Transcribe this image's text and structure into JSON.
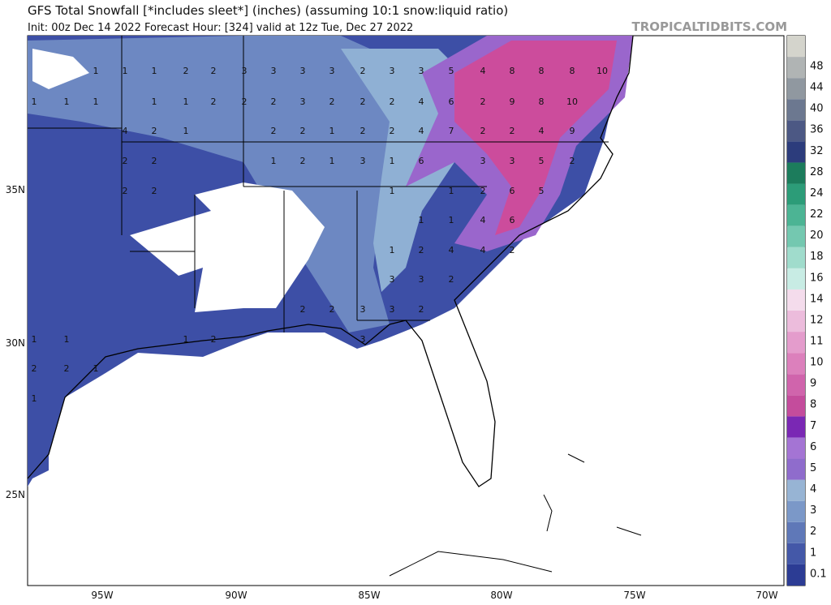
{
  "header": {
    "title": "GFS Total Snowfall [*includes sleet*] (inches) (assuming 10:1 snow:liquid ratio)",
    "subtitle": "Init: 00z Dec 14 2022   Forecast Hour: [324]   valid at 12z Tue, Dec 27 2022",
    "watermark": "TROPICALTIDBITS.COM"
  },
  "map": {
    "lat_labels": [
      "35N",
      "30N",
      "25N"
    ],
    "lon_labels": [
      "95W",
      "90W",
      "85W",
      "80W",
      "75W",
      "70W"
    ],
    "snowfall_labels": [
      [
        1,
        1,
        1,
        2,
        2,
        3,
        3,
        3,
        3,
        2,
        3,
        3,
        5,
        4,
        8,
        8,
        8,
        10
      ],
      [
        1,
        1,
        1,
        1,
        1,
        2,
        2,
        2,
        3,
        2,
        2,
        2,
        4,
        6,
        2,
        9,
        8,
        10
      ],
      [
        4,
        2,
        1,
        2,
        2,
        1,
        2,
        2,
        4,
        7,
        2,
        2,
        4,
        9
      ],
      [
        2,
        2,
        1,
        2,
        1,
        3,
        1,
        6,
        3,
        3,
        5,
        2
      ],
      [
        2,
        2,
        1,
        1,
        2,
        6,
        5
      ],
      [
        1,
        1,
        4,
        6
      ],
      [
        1,
        2,
        4,
        4,
        2
      ],
      [
        3,
        3,
        2
      ],
      [
        2,
        2,
        3,
        3,
        2
      ],
      [
        1,
        1,
        1,
        2,
        3
      ],
      [
        2,
        2,
        1
      ],
      [
        1
      ]
    ]
  },
  "colorbar": {
    "levels": [
      0.1,
      1,
      2,
      3,
      4,
      5,
      6,
      7,
      8,
      9,
      10,
      11,
      12,
      14,
      16,
      18,
      20,
      22,
      24,
      28,
      32,
      36,
      40,
      44,
      48
    ],
    "colors": [
      "#2c3c94",
      "#4458a8",
      "#5f78b8",
      "#7b98c8",
      "#97b4d4",
      "#8f6ccc",
      "#a474d4",
      "#7a28b4",
      "#c44c9c",
      "#d064ac",
      "#dc80bc",
      "#e49ccc",
      "#ecbcdc",
      "#f4dcec",
      "#c8ece4",
      "#a0dccc",
      "#74c8b0",
      "#4cb494",
      "#2c9c78",
      "#1c7c5c",
      "#2c3c7c",
      "#4c5884",
      "#6c7890",
      "#9098a0",
      "#b0b4b4",
      "#d4d4cc"
    ]
  }
}
